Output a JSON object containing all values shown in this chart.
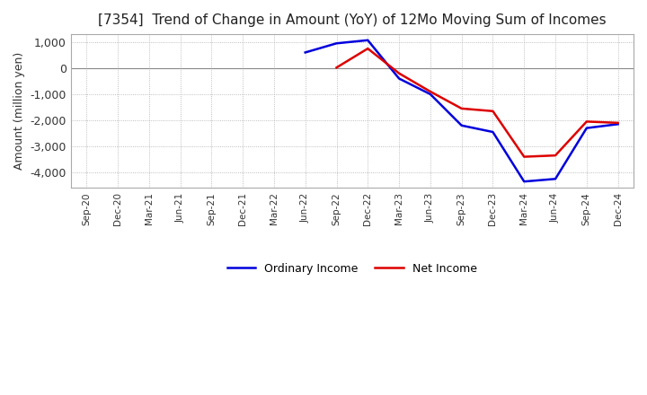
{
  "title": "[7354]  Trend of Change in Amount (YoY) of 12Mo Moving Sum of Incomes",
  "ylabel": "Amount (million yen)",
  "ylim": [
    -4600,
    1300
  ],
  "yticks": [
    -4000,
    -3000,
    -2000,
    -1000,
    0,
    1000
  ],
  "background_color": "#ffffff",
  "grid_color": "#aaaaaa",
  "ordinary_income_color": "#0000dd",
  "net_income_color": "#dd0000",
  "dates": [
    "Sep-20",
    "Dec-20",
    "Mar-21",
    "Jun-21",
    "Sep-21",
    "Dec-21",
    "Mar-22",
    "Jun-22",
    "Sep-22",
    "Dec-22",
    "Mar-23",
    "Jun-23",
    "Sep-23",
    "Dec-23",
    "Mar-24",
    "Jun-24",
    "Sep-24",
    "Dec-24"
  ],
  "ordinary_income": [
    null,
    null,
    null,
    null,
    null,
    null,
    null,
    600,
    950,
    1070,
    -400,
    -1000,
    -2200,
    -2450,
    -4350,
    -4250,
    -2300,
    -2150
  ],
  "net_income": [
    null,
    null,
    null,
    null,
    null,
    null,
    null,
    null,
    20,
    750,
    -200,
    -900,
    -1550,
    -1650,
    -3400,
    -3350,
    -2050,
    -2100
  ],
  "legend_labels": [
    "Ordinary Income",
    "Net Income"
  ]
}
